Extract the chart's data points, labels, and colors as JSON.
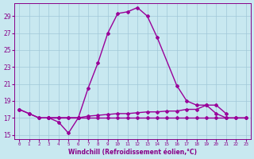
{
  "color": "#990099",
  "bg_color": "#c8e8f0",
  "grid_color": "#a0c8d8",
  "xlabel": "Windchill (Refroidissement éolien,°C)",
  "ylim": [
    14.5,
    30.5
  ],
  "yticks": [
    15,
    17,
    19,
    21,
    23,
    25,
    27,
    29
  ],
  "xlim": [
    -0.5,
    23.5
  ],
  "title_color": "#880088",
  "main_x": [
    0,
    1,
    2,
    3,
    6,
    7,
    8,
    9,
    10,
    11,
    12,
    13,
    14,
    16,
    17,
    18,
    19,
    20,
    21,
    22,
    23
  ],
  "main_y": [
    18.0,
    17.5,
    17.0,
    17.0,
    17.0,
    20.5,
    23.5,
    27.0,
    29.3,
    29.5,
    30.0,
    29.0,
    26.5,
    20.8,
    19.0,
    18.5,
    18.5,
    17.5,
    17.0,
    17.0,
    17.0
  ],
  "dip_x": [
    0,
    1,
    2,
    3,
    4,
    5,
    6
  ],
  "dip_y": [
    18.0,
    17.5,
    17.0,
    17.0,
    16.5,
    15.2,
    17.0
  ],
  "flat1_x": [
    3,
    4,
    5,
    6,
    7,
    8,
    9,
    10,
    11,
    12,
    13,
    14,
    15,
    16,
    17,
    18,
    19,
    20,
    21
  ],
  "flat1_y": [
    17.0,
    17.0,
    17.0,
    17.0,
    17.2,
    17.3,
    17.4,
    17.5,
    17.5,
    17.6,
    17.7,
    17.7,
    17.8,
    17.8,
    18.0,
    18.0,
    18.5,
    18.5,
    17.5
  ],
  "flat2_x": [
    3,
    4,
    5,
    6,
    7,
    8,
    9,
    10,
    11,
    12,
    13,
    14,
    15,
    16,
    17,
    18,
    19,
    20,
    21,
    22,
    23
  ],
  "flat2_y": [
    17.0,
    17.0,
    17.0,
    17.0,
    17.0,
    17.0,
    17.0,
    17.0,
    17.0,
    17.0,
    17.0,
    17.0,
    17.0,
    17.0,
    17.0,
    17.0,
    17.0,
    17.0,
    17.0,
    17.0,
    17.0
  ]
}
